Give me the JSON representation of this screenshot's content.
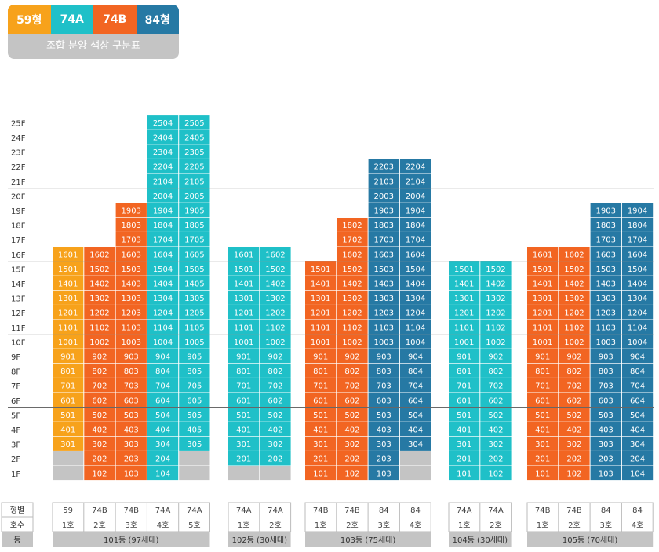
{
  "legend": {
    "items": [
      {
        "label": "59형",
        "color": "#f7a21b"
      },
      {
        "label": "74A",
        "color": "#1fc0c8"
      },
      {
        "label": "74B",
        "color": "#f26522"
      },
      {
        "label": "84형",
        "color": "#2679a4"
      }
    ],
    "title": "조합 분양 색상 구분표"
  },
  "chart_data": {
    "type": "table",
    "floors": [
      "25F",
      "24F",
      "23F",
      "22F",
      "21F",
      "20F",
      "19F",
      "18F",
      "17F",
      "16F",
      "15F",
      "14F",
      "13F",
      "12F",
      "11F",
      "10F",
      "9F",
      "8F",
      "7F",
      "6F",
      "5F",
      "4F",
      "3F",
      "2F",
      "1F"
    ],
    "type_colors": {
      "59": "#f7a21b",
      "74A": "#1fc0c8",
      "74B": "#f26522",
      "84": "#2679a4",
      "none": "#c4c4c4"
    },
    "row_labels": {
      "type": "형별",
      "unit": "호수",
      "building": "동"
    },
    "buildings": [
      {
        "name": "101동 (97세대)",
        "columns": [
          {
            "type": "59",
            "unit": "1호",
            "top": 16,
            "grayFloors": [
              1,
              2
            ],
            "labels": {}
          },
          {
            "type": "74B",
            "unit": "2호",
            "top": 16,
            "grayFloors": [],
            "labels": {}
          },
          {
            "type": "74B",
            "unit": "3호",
            "top": 19,
            "grayFloors": [],
            "labels": {}
          },
          {
            "type": "74A",
            "unit": "4호",
            "top": 25,
            "grayFloors": [],
            "labels": {}
          },
          {
            "type": "74A",
            "unit": "5호",
            "top": 25,
            "grayFloors": [
              1,
              2
            ],
            "labels": {}
          }
        ]
      },
      {
        "name": "102동 (30세대)",
        "columns": [
          {
            "type": "74A",
            "unit": "1호",
            "top": 16,
            "grayFloors": [
              1
            ],
            "labels": {}
          },
          {
            "type": "74A",
            "unit": "2호",
            "top": 16,
            "grayFloors": [
              1
            ],
            "labels": {}
          }
        ]
      },
      {
        "name": "103동 (75세대)",
        "columns": [
          {
            "type": "74B",
            "unit": "1호",
            "top": 15,
            "grayFloors": [],
            "labels": {}
          },
          {
            "type": "74B",
            "unit": "2호",
            "top": 18,
            "grayFloors": [],
            "labels": {}
          },
          {
            "type": "84",
            "unit": "3호",
            "top": 22,
            "grayFloors": [],
            "labels": {}
          },
          {
            "type": "84",
            "unit": "4호",
            "top": 22,
            "grayFloors": [
              1,
              2
            ],
            "labels": {
              "1": "",
              "2": ""
            }
          }
        ]
      },
      {
        "name": "104동 (30세대)",
        "columns": [
          {
            "type": "74A",
            "unit": "1호",
            "top": 15,
            "grayFloors": [],
            "labels": {}
          },
          {
            "type": "74A",
            "unit": "2호",
            "top": 15,
            "grayFloors": [],
            "labels": {}
          }
        ]
      },
      {
        "name": "105동 (70세대)",
        "columns": [
          {
            "type": "74B",
            "unit": "1호",
            "top": 16,
            "grayFloors": [],
            "labels": {}
          },
          {
            "type": "74B",
            "unit": "2호",
            "top": 16,
            "grayFloors": [],
            "labels": {}
          },
          {
            "type": "84",
            "unit": "3호",
            "top": 19,
            "grayFloors": [],
            "labels": {}
          },
          {
            "type": "84",
            "unit": "4호",
            "top": 19,
            "grayFloors": [],
            "labels": {}
          }
        ]
      }
    ],
    "type_display": {
      "59": "59",
      "74A": "74A",
      "74B": "74B",
      "84": "84"
    },
    "divider_floors": [
      20,
      15,
      10,
      5
    ]
  }
}
